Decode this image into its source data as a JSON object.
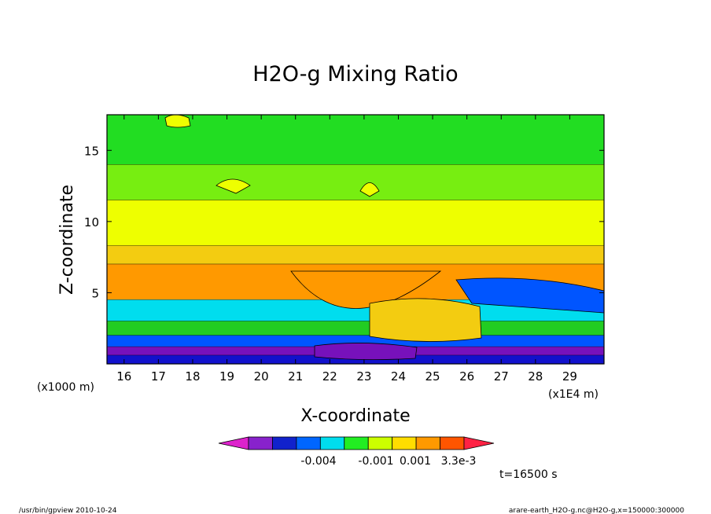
{
  "chart_data": {
    "type": "heatmap",
    "title": "H2O-g Mixing Ratio",
    "xlabel": "X-coordinate",
    "ylabel": "Z-coordinate",
    "x_unit_left": "(x1000 m)",
    "x_unit_right": "(x1E4 m)",
    "xlim": [
      15.5,
      30
    ],
    "ylim": [
      0,
      17.5
    ],
    "x_ticks": [
      16,
      17,
      18,
      19,
      20,
      21,
      22,
      23,
      24,
      25,
      26,
      27,
      28,
      29
    ],
    "y_ticks": [
      5,
      10,
      15
    ],
    "layers": [
      {
        "z": [
          17.5,
          14.0
        ],
        "color": "#22dd22"
      },
      {
        "z": [
          14.0,
          11.5
        ],
        "color": "#77ee11"
      },
      {
        "z": [
          11.5,
          8.3
        ],
        "color": "#eeff00"
      },
      {
        "z": [
          8.3,
          7.0
        ],
        "color": "#f3cc11"
      },
      {
        "z": [
          7.0,
          4.5
        ],
        "color": "#ff9900"
      },
      {
        "z": [
          4.5,
          3.0
        ],
        "color": "#00ddee"
      },
      {
        "z": [
          3.0,
          2.0
        ],
        "color": "#22cc22"
      },
      {
        "z": [
          2.0,
          1.2
        ],
        "color": "#0055ff"
      },
      {
        "z": [
          1.2,
          0.6
        ],
        "color": "#7711bb"
      },
      {
        "z": [
          0.6,
          0.0
        ],
        "color": "#1111cc"
      }
    ],
    "colorbar": {
      "colors": [
        "#dd22cc",
        "#8822cc",
        "#1122cc",
        "#0066ff",
        "#00ddee",
        "#22ee22",
        "#ccff00",
        "#ffdd00",
        "#ff9900",
        "#ff5500",
        "#ff2244"
      ],
      "labels": [
        "-0.004",
        "-0.001",
        "0.001",
        "3.3e-3"
      ]
    },
    "time_label": "t=16500 s"
  },
  "footer": {
    "left": "/usr/bin/gpview  2010-10-24",
    "right": "arare-earth_H2O-g.nc@H2O-g,x=150000:300000"
  }
}
